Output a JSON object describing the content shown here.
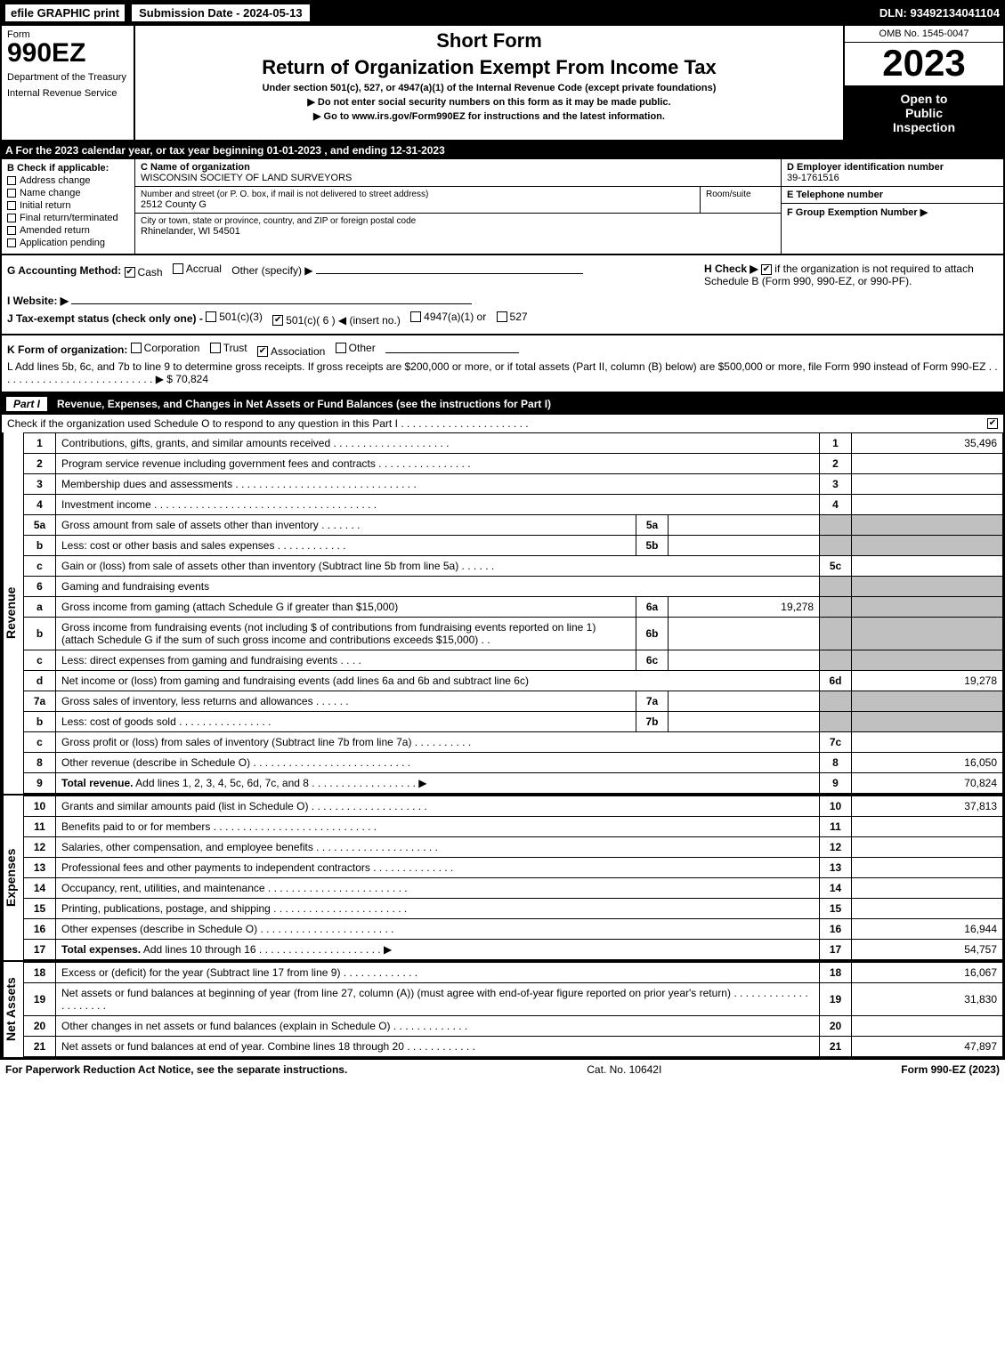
{
  "topbar": {
    "efile": "efile GRAPHIC print",
    "submission": "Submission Date - 2024-05-13",
    "dln": "DLN: 93492134041104"
  },
  "header": {
    "form_word": "Form",
    "form_number": "990EZ",
    "department": "Department of the Treasury",
    "irs": "Internal Revenue Service",
    "short_form": "Short Form",
    "title": "Return of Organization Exempt From Income Tax",
    "subtitle": "Under section 501(c), 527, or 4947(a)(1) of the Internal Revenue Code (except private foundations)",
    "note1": "▶ Do not enter social security numbers on this form as it may be made public.",
    "note2": "▶ Go to www.irs.gov/Form990EZ for instructions and the latest information.",
    "omb": "OMB No. 1545-0047",
    "year": "2023",
    "inspection1": "Open to",
    "inspection2": "Public",
    "inspection3": "Inspection"
  },
  "line_a": "A  For the 2023 calendar year, or tax year beginning 01-01-2023 , and ending 12-31-2023",
  "section_b": {
    "header": "B  Check if applicable:",
    "items": [
      "Address change",
      "Name change",
      "Initial return",
      "Final return/terminated",
      "Amended return",
      "Application pending"
    ]
  },
  "section_c": {
    "name_label": "C Name of organization",
    "name": "WISCONSIN SOCIETY OF LAND SURVEYORS",
    "street_label": "Number and street (or P. O. box, if mail is not delivered to street address)",
    "room_label": "Room/suite",
    "street": "2512 County G",
    "city_label": "City or town, state or province, country, and ZIP or foreign postal code",
    "city": "Rhinelander, WI  54501"
  },
  "section_def": {
    "d_label": "D Employer identification number",
    "d_value": "39-1761516",
    "e_label": "E Telephone number",
    "f_label": "F Group Exemption Number  ▶"
  },
  "section_g": {
    "label": "G Accounting Method:",
    "cash": "Cash",
    "accrual": "Accrual",
    "other": "Other (specify) ▶",
    "cash_checked": true
  },
  "section_h": {
    "label": "H  Check ▶",
    "text": "if the organization is not required to attach Schedule B (Form 990, 990-EZ, or 990-PF).",
    "checked": true
  },
  "section_i": {
    "label": "I Website: ▶"
  },
  "section_j": {
    "label": "J Tax-exempt status (check only one) -",
    "opt1": "501(c)(3)",
    "opt2": "501(c)( 6 ) ◀ (insert no.)",
    "opt3": "4947(a)(1) or",
    "opt4": "527",
    "opt2_checked": true
  },
  "section_k": {
    "label": "K Form of organization:",
    "opts": [
      "Corporation",
      "Trust",
      "Association",
      "Other"
    ],
    "checked_index": 2
  },
  "section_l": {
    "text": "L Add lines 5b, 6c, and 7b to line 9 to determine gross receipts. If gross receipts are $200,000 or more, or if total assets (Part II, column (B) below) are $500,000 or more, file Form 990 instead of Form 990-EZ  .  .  .  .  .  .  .  .  .  .  .  .  .  .  .  .  .  .  .  .  .  .  .  .  .  .  .  ▶",
    "amount": "$ 70,824"
  },
  "part1": {
    "label": "Part I",
    "title": "Revenue, Expenses, and Changes in Net Assets or Fund Balances (see the instructions for Part I)",
    "subtext": "Check if the organization used Schedule O to respond to any question in this Part I .  .  .  .  .  .  .  .  .  .  .  .  .  .  .  .  .  .  .  .  .  .",
    "sub_checked": true
  },
  "revenue": {
    "section_label": "Revenue",
    "rows": [
      {
        "n": "1",
        "desc": "Contributions, gifts, grants, and similar amounts received  .  .  .  .  .  .  .  .  .  .  .  .  .  .  .  .  .  .  .  .",
        "rn": "1",
        "amt": "35,496"
      },
      {
        "n": "2",
        "desc": "Program service revenue including government fees and contracts  .  .  .  .  .  .  .  .  .  .  .  .  .  .  .  .",
        "rn": "2",
        "amt": ""
      },
      {
        "n": "3",
        "desc": "Membership dues and assessments  .  .  .  .  .  .  .  .  .  .  .  .  .  .  .  .  .  .  .  .  .  .  .  .  .  .  .  .  .  .  .",
        "rn": "3",
        "amt": ""
      },
      {
        "n": "4",
        "desc": "Investment income  .  .  .  .  .  .  .  .  .  .  .  .  .  .  .  .  .  .  .  .  .  .  .  .  .  .  .  .  .  .  .  .  .  .  .  .  .  .",
        "rn": "4",
        "amt": ""
      },
      {
        "n": "5a",
        "desc": "Gross amount from sale of assets other than inventory  .  .  .  .  .  .  .",
        "sn": "5a",
        "sv": "",
        "grey": true
      },
      {
        "n": "b",
        "desc": "Less: cost or other basis and sales expenses  .  .  .  .  .  .  .  .  .  .  .  .",
        "sn": "5b",
        "sv": "",
        "grey": true
      },
      {
        "n": "c",
        "desc": "Gain or (loss) from sale of assets other than inventory (Subtract line 5b from line 5a)  .  .  .  .  .  .",
        "rn": "5c",
        "amt": ""
      },
      {
        "n": "6",
        "desc": "Gaming and fundraising events",
        "grey": true,
        "nosub": true
      },
      {
        "n": "a",
        "desc": "Gross income from gaming (attach Schedule G if greater than $15,000)",
        "sn": "6a",
        "sv": "19,278",
        "grey": true
      },
      {
        "n": "b",
        "desc": "Gross income from fundraising events (not including $                           of contributions from fundraising events reported on line 1) (attach Schedule G if the sum of such gross income and contributions exceeds $15,000)   .  .",
        "sn": "6b",
        "sv": "",
        "grey": true
      },
      {
        "n": "c",
        "desc": "Less: direct expenses from gaming and fundraising events    .  .  .  .",
        "sn": "6c",
        "sv": "",
        "grey": true
      },
      {
        "n": "d",
        "desc": "Net income or (loss) from gaming and fundraising events (add lines 6a and 6b and subtract line 6c)",
        "rn": "6d",
        "amt": "19,278"
      },
      {
        "n": "7a",
        "desc": "Gross sales of inventory, less returns and allowances  .  .  .  .  .  .",
        "sn": "7a",
        "sv": "",
        "grey": true
      },
      {
        "n": "b",
        "desc": "Less: cost of goods sold       .  .  .  .  .  .  .  .  .  .  .  .  .  .  .  .",
        "sn": "7b",
        "sv": "",
        "grey": true
      },
      {
        "n": "c",
        "desc": "Gross profit or (loss) from sales of inventory (Subtract line 7b from line 7a)  .  .  .  .  .  .  .  .  .  .",
        "rn": "7c",
        "amt": ""
      },
      {
        "n": "8",
        "desc": "Other revenue (describe in Schedule O)  .  .  .  .  .  .  .  .  .  .  .  .  .  .  .  .  .  .  .  .  .  .  .  .  .  .  .",
        "rn": "8",
        "amt": "16,050"
      },
      {
        "n": "9",
        "desc": "Total revenue. Add lines 1, 2, 3, 4, 5c, 6d, 7c, and 8   .  .  .  .  .  .  .  .  .  .  .  .  .  .  .  .  .  .  ▶",
        "rn": "9",
        "amt": "70,824",
        "bold": true
      }
    ]
  },
  "expenses": {
    "section_label": "Expenses",
    "rows": [
      {
        "n": "10",
        "desc": "Grants and similar amounts paid (list in Schedule O)  .  .  .  .  .  .  .  .  .  .  .  .  .  .  .  .  .  .  .  .",
        "rn": "10",
        "amt": "37,813"
      },
      {
        "n": "11",
        "desc": "Benefits paid to or for members     .  .  .  .  .  .  .  .  .  .  .  .  .  .  .  .  .  .  .  .  .  .  .  .  .  .  .  .",
        "rn": "11",
        "amt": ""
      },
      {
        "n": "12",
        "desc": "Salaries, other compensation, and employee benefits .  .  .  .  .  .  .  .  .  .  .  .  .  .  .  .  .  .  .  .  .",
        "rn": "12",
        "amt": ""
      },
      {
        "n": "13",
        "desc": "Professional fees and other payments to independent contractors   .  .  .  .  .  .  .  .  .  .  .  .  .  .",
        "rn": "13",
        "amt": ""
      },
      {
        "n": "14",
        "desc": "Occupancy, rent, utilities, and maintenance .  .  .  .  .  .  .  .  .  .  .  .  .  .  .  .  .  .  .  .  .  .  .  .",
        "rn": "14",
        "amt": ""
      },
      {
        "n": "15",
        "desc": "Printing, publications, postage, and shipping .  .  .  .  .  .  .  .  .  .  .  .  .  .  .  .  .  .  .  .  .  .  .",
        "rn": "15",
        "amt": ""
      },
      {
        "n": "16",
        "desc": "Other expenses (describe in Schedule O)     .  .  .  .  .  .  .  .  .  .  .  .  .  .  .  .  .  .  .  .  .  .  .",
        "rn": "16",
        "amt": "16,944"
      },
      {
        "n": "17",
        "desc": "Total expenses. Add lines 10 through 16     .  .  .  .  .  .  .  .  .  .  .  .  .  .  .  .  .  .  .  .  .  ▶",
        "rn": "17",
        "amt": "54,757",
        "bold": true
      }
    ]
  },
  "netassets": {
    "section_label": "Net Assets",
    "rows": [
      {
        "n": "18",
        "desc": "Excess or (deficit) for the year (Subtract line 17 from line 9)        .  .  .  .  .  .  .  .  .  .  .  .  .",
        "rn": "18",
        "amt": "16,067"
      },
      {
        "n": "19",
        "desc": "Net assets or fund balances at beginning of year (from line 27, column (A)) (must agree with end-of-year figure reported on prior year's return) .  .  .  .  .  .  .  .  .  .  .  .  .  .  .  .  .  .  .  .  .",
        "rn": "19",
        "amt": "31,830"
      },
      {
        "n": "20",
        "desc": "Other changes in net assets or fund balances (explain in Schedule O) .  .  .  .  .  .  .  .  .  .  .  .  .",
        "rn": "20",
        "amt": ""
      },
      {
        "n": "21",
        "desc": "Net assets or fund balances at end of year. Combine lines 18 through 20 .  .  .  .  .  .  .  .  .  .  .  .",
        "rn": "21",
        "amt": "47,897"
      }
    ]
  },
  "footer": {
    "left": "For Paperwork Reduction Act Notice, see the separate instructions.",
    "mid": "Cat. No. 10642I",
    "right": "Form 990-EZ (2023)"
  },
  "colors": {
    "black": "#000000",
    "white": "#ffffff",
    "grey": "#c0c0c0"
  }
}
